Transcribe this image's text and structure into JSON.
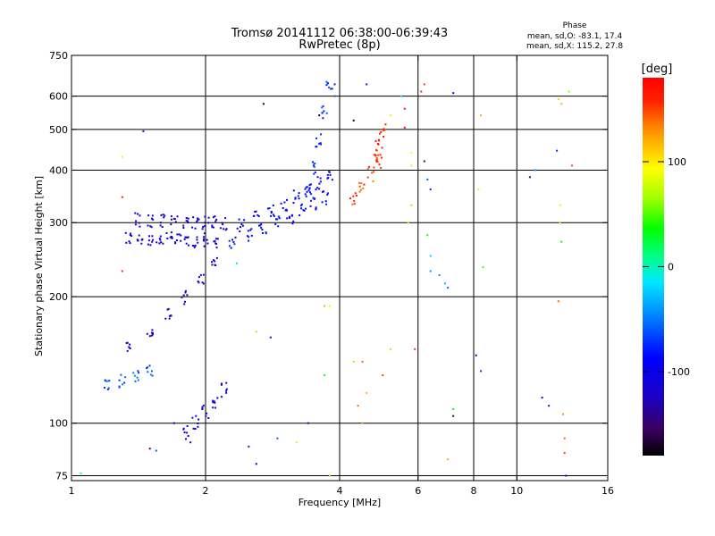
{
  "chart_data": {
    "type": "scatter",
    "title": "Tromsø 20141112 06:38:00-06:39:43",
    "subtitle": "RwPretec (8p)",
    "xlabel": "Frequency [MHz]",
    "ylabel": "Stationary phase Virtual Height [km]",
    "x_scale": "log",
    "y_scale": "log",
    "xlim": [
      1,
      16
    ],
    "ylim": [
      73,
      750
    ],
    "x_ticks": [
      1,
      2,
      4,
      6,
      8,
      10,
      16
    ],
    "x_tick_labels": [
      "1",
      "2",
      "4",
      "6",
      "8",
      "10",
      "16"
    ],
    "y_ticks": [
      75,
      100,
      200,
      300,
      400,
      500,
      600,
      750
    ],
    "y_tick_labels": [
      "75",
      "100",
      "200",
      "300",
      "400",
      "500",
      "600",
      "750"
    ],
    "grid": true,
    "stats": {
      "header": "Phase",
      "line_o": "mean, sd,O: -83.1, 17.4",
      "line_x": "mean, sd,X: 115.2, 27.8"
    },
    "colorbar": {
      "label": "[deg]",
      "ticks": [
        100,
        0,
        -100
      ],
      "tick_labels": [
        "100",
        "0",
        "-100"
      ],
      "range": [
        -180,
        180
      ]
    },
    "traces": [
      {
        "f": [
          1.34,
          1.42,
          1.5,
          1.58,
          1.66,
          1.74,
          1.82,
          1.9,
          2.0,
          2.1
        ],
        "h_start": 275,
        "h_end": 272,
        "phase": -110
      },
      {
        "f": [
          1.4,
          1.5,
          1.6,
          1.7,
          1.8,
          1.9,
          2.0,
          2.1,
          2.2
        ],
        "h_start": 305,
        "h_end": 300,
        "phase": -115
      },
      {
        "f": [
          2.3,
          2.5,
          2.7,
          2.9,
          3.1,
          3.3,
          3.5,
          3.7
        ],
        "h_start": 270,
        "h_end": 345,
        "phase": -85
      },
      {
        "f": [
          2.4,
          2.6,
          2.8,
          3.0,
          3.2,
          3.4,
          3.6,
          3.8
        ],
        "h_start": 295,
        "h_end": 390,
        "phase": -95
      },
      {
        "f": [
          3.4,
          3.5,
          3.6,
          3.7,
          3.8
        ],
        "h_start": 350,
        "h_end": 640,
        "phase": -70
      },
      {
        "f": [
          4.3,
          4.5,
          4.7,
          4.9
        ],
        "h_start": 340,
        "h_end": 420,
        "phase": 150
      },
      {
        "f": [
          4.8,
          4.9,
          5.0
        ],
        "h_start": 430,
        "h_end": 500,
        "phase": 160
      },
      {
        "f": [
          1.35,
          1.5,
          1.65,
          1.8,
          1.95,
          2.1
        ],
        "h_start": 150,
        "h_end": 240,
        "phase": -120
      },
      {
        "f": [
          1.2,
          1.3,
          1.4,
          1.5
        ],
        "h_start": 122,
        "h_end": 135,
        "phase": -60
      },
      {
        "f": [
          1.8,
          1.9,
          2.0,
          2.1,
          2.2
        ],
        "h_start": 95,
        "h_end": 120,
        "phase": -100
      }
    ],
    "scatter_points": [
      {
        "x": 1.05,
        "y": 76,
        "phase": 10
      },
      {
        "x": 1.3,
        "y": 430,
        "phase": 100
      },
      {
        "x": 1.3,
        "y": 345,
        "phase": 160
      },
      {
        "x": 1.3,
        "y": 230,
        "phase": 160
      },
      {
        "x": 1.45,
        "y": 495,
        "phase": -80
      },
      {
        "x": 1.5,
        "y": 87,
        "phase": -150
      },
      {
        "x": 1.55,
        "y": 86,
        "phase": -60
      },
      {
        "x": 1.7,
        "y": 100,
        "phase": -100
      },
      {
        "x": 1.85,
        "y": 90,
        "phase": -130
      },
      {
        "x": 2.35,
        "y": 240,
        "phase": 10
      },
      {
        "x": 2.5,
        "y": 88,
        "phase": -80
      },
      {
        "x": 2.6,
        "y": 80,
        "phase": -120
      },
      {
        "x": 2.7,
        "y": 575,
        "phase": -170
      },
      {
        "x": 2.6,
        "y": 165,
        "phase": 60
      },
      {
        "x": 2.8,
        "y": 160,
        "phase": -100
      },
      {
        "x": 2.9,
        "y": 92,
        "phase": -60
      },
      {
        "x": 3.2,
        "y": 90,
        "phase": 100
      },
      {
        "x": 3.4,
        "y": 100,
        "phase": -100
      },
      {
        "x": 3.7,
        "y": 190,
        "phase": 120
      },
      {
        "x": 3.8,
        "y": 190,
        "phase": 90
      },
      {
        "x": 3.7,
        "y": 130,
        "phase": 30
      },
      {
        "x": 3.8,
        "y": 75,
        "phase": 60
      },
      {
        "x": 3.6,
        "y": 540,
        "phase": -170
      },
      {
        "x": 3.9,
        "y": 640,
        "phase": -80
      },
      {
        "x": 3.9,
        "y": 600,
        "phase": -60
      },
      {
        "x": 4.3,
        "y": 525,
        "phase": -170
      },
      {
        "x": 4.6,
        "y": 640,
        "phase": -80
      },
      {
        "x": 4.3,
        "y": 140,
        "phase": 110
      },
      {
        "x": 4.5,
        "y": 140,
        "phase": 140
      },
      {
        "x": 4.4,
        "y": 110,
        "phase": 140
      },
      {
        "x": 4.6,
        "y": 118,
        "phase": 120
      },
      {
        "x": 4.5,
        "y": 100,
        "phase": 130
      },
      {
        "x": 5.0,
        "y": 130,
        "phase": 150
      },
      {
        "x": 5.2,
        "y": 150,
        "phase": 110
      },
      {
        "x": 5.2,
        "y": 540,
        "phase": 100
      },
      {
        "x": 5.5,
        "y": 600,
        "phase": -20
      },
      {
        "x": 5.6,
        "y": 505,
        "phase": 170
      },
      {
        "x": 5.6,
        "y": 560,
        "phase": 170
      },
      {
        "x": 5.8,
        "y": 330,
        "phase": 60
      },
      {
        "x": 5.8,
        "y": 410,
        "phase": 80
      },
      {
        "x": 5.8,
        "y": 440,
        "phase": 90
      },
      {
        "x": 5.7,
        "y": 300,
        "phase": 110
      },
      {
        "x": 5.9,
        "y": 150,
        "phase": 150
      },
      {
        "x": 6.1,
        "y": 615,
        "phase": 160
      },
      {
        "x": 6.2,
        "y": 640,
        "phase": 150
      },
      {
        "x": 6.2,
        "y": 420,
        "phase": -150
      },
      {
        "x": 6.3,
        "y": 280,
        "phase": 30
      },
      {
        "x": 6.4,
        "y": 250,
        "phase": -20
      },
      {
        "x": 6.4,
        "y": 230,
        "phase": -40
      },
      {
        "x": 6.3,
        "y": 380,
        "phase": -60
      },
      {
        "x": 6.4,
        "y": 360,
        "phase": -70
      },
      {
        "x": 6.7,
        "y": 225,
        "phase": -40
      },
      {
        "x": 6.9,
        "y": 215,
        "phase": -30
      },
      {
        "x": 7.0,
        "y": 210,
        "phase": -50
      },
      {
        "x": 7.2,
        "y": 108,
        "phase": 30
      },
      {
        "x": 7.2,
        "y": 104,
        "phase": -160
      },
      {
        "x": 7.0,
        "y": 82,
        "phase": 120
      },
      {
        "x": 7.2,
        "y": 610,
        "phase": -100
      },
      {
        "x": 8.3,
        "y": 540,
        "phase": 120
      },
      {
        "x": 8.2,
        "y": 360,
        "phase": 100
      },
      {
        "x": 8.4,
        "y": 235,
        "phase": 50
      },
      {
        "x": 8.1,
        "y": 145,
        "phase": -140
      },
      {
        "x": 8.3,
        "y": 133,
        "phase": -70
      },
      {
        "x": 10.7,
        "y": 385,
        "phase": -150
      },
      {
        "x": 11.0,
        "y": 400,
        "phase": -40
      },
      {
        "x": 11.4,
        "y": 115,
        "phase": -100
      },
      {
        "x": 11.8,
        "y": 110,
        "phase": -80
      },
      {
        "x": 12.4,
        "y": 590,
        "phase": 110
      },
      {
        "x": 12.6,
        "y": 575,
        "phase": 120
      },
      {
        "x": 12.3,
        "y": 445,
        "phase": -70
      },
      {
        "x": 12.5,
        "y": 330,
        "phase": 80
      },
      {
        "x": 12.5,
        "y": 300,
        "phase": 60
      },
      {
        "x": 12.4,
        "y": 195,
        "phase": 140
      },
      {
        "x": 12.7,
        "y": 105,
        "phase": 130
      },
      {
        "x": 12.8,
        "y": 92,
        "phase": 140
      },
      {
        "x": 12.8,
        "y": 85,
        "phase": 150
      },
      {
        "x": 12.9,
        "y": 75,
        "phase": -120
      },
      {
        "x": 13.1,
        "y": 615,
        "phase": 60
      },
      {
        "x": 13.3,
        "y": 410,
        "phase": 150
      },
      {
        "x": 12.6,
        "y": 270,
        "phase": 30
      }
    ]
  }
}
